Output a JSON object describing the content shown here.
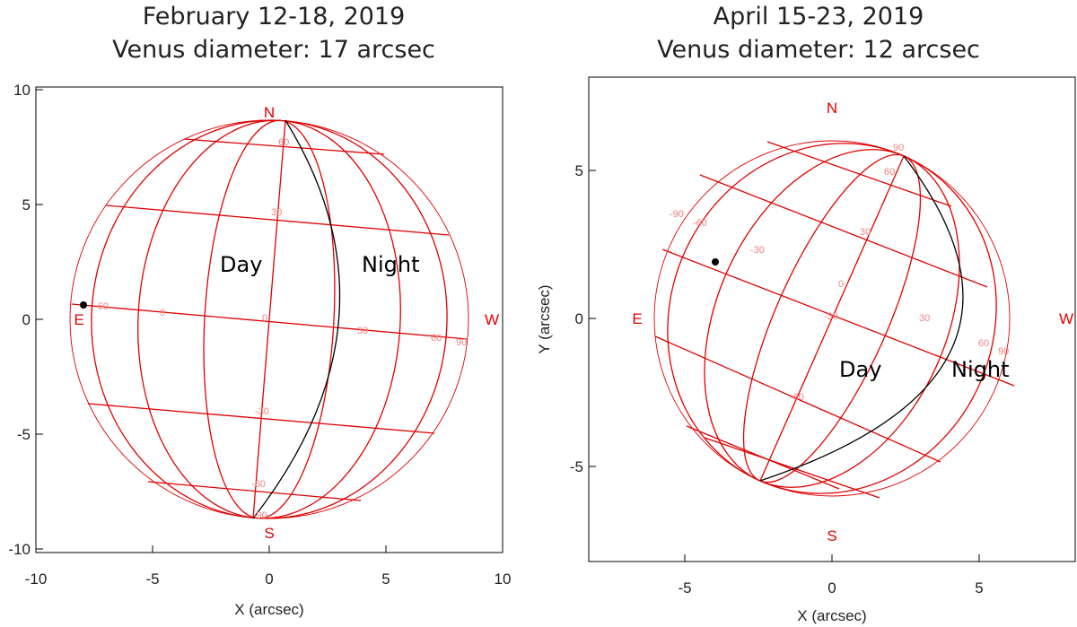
{
  "panels": [
    {
      "title_line1": "February 12-18, 2019",
      "title_line2": "Venus diameter: 17 arcsec",
      "x_axis_label": "X (arcsec)",
      "y_axis_label": "",
      "x_ticks": [
        "-10",
        "-5",
        "0",
        "5",
        "10"
      ],
      "y_ticks": [
        "10",
        "5",
        "0",
        "-5",
        "-10"
      ],
      "compass": {
        "north": "N",
        "south": "S",
        "east": "E",
        "west": "W"
      },
      "day_label": "Day",
      "night_label": "Night",
      "grid_numbers": [
        "60",
        "30",
        "0",
        "-30",
        "-60",
        "-60",
        "0",
        "30",
        "60",
        "90",
        "-90"
      ]
    },
    {
      "title_line1": "April 15-23, 2019",
      "title_line2": "Venus diameter: 12 arcsec",
      "x_axis_label": "X (arcsec)",
      "y_axis_label": "Y (arcsec)",
      "x_ticks": [
        "-5",
        "0",
        "5"
      ],
      "y_ticks": [
        "5",
        "0",
        "-5"
      ],
      "compass": {
        "north": "N",
        "south": "S",
        "east": "E",
        "west": "W"
      },
      "day_label": "Day",
      "night_label": "Night",
      "grid_numbers": [
        "90",
        "60",
        "30",
        "0",
        "-30",
        "-60",
        "-90",
        "-60",
        "-30",
        "30",
        "60",
        "90"
      ]
    }
  ],
  "colors": {
    "grid": "#e00000",
    "terminator": "#000000",
    "frame": "#000000"
  }
}
